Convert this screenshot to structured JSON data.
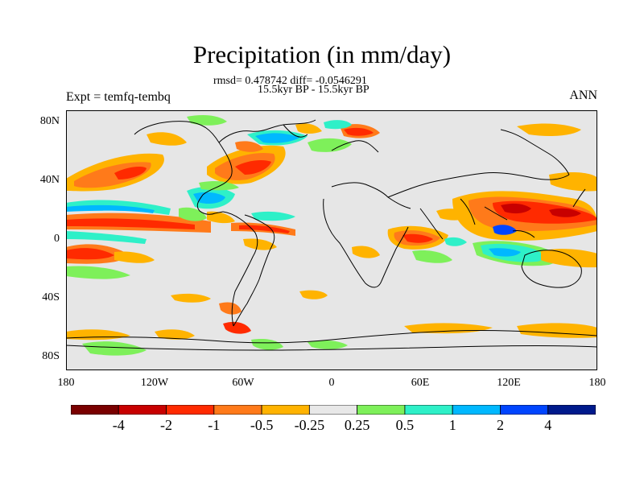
{
  "title": "Precipitation (in mm/day)",
  "stats_line": "rmsd= 0.478742 diff= -0.0546291",
  "experiment_period": "15.5kyr BP - 15.5kyr BP",
  "expt_label": "Expt = temfq-tembq",
  "season_label": "ANN",
  "axes": {
    "y_ticks": [
      "80N",
      "40N",
      "0",
      "40S",
      "80S"
    ],
    "x_ticks": [
      "180",
      "120W",
      "60W",
      "0",
      "60E",
      "120E",
      "180"
    ]
  },
  "colorbar": {
    "colors": [
      "#7a0000",
      "#c80000",
      "#ff2a00",
      "#ff7a1a",
      "#ffb300",
      "#e8e8e8",
      "#7ef05a",
      "#2ef0c8",
      "#00b8ff",
      "#0045ff",
      "#001a8c"
    ],
    "labels": [
      "-4",
      "-2",
      "-1",
      "-0.5",
      "-0.25",
      "0.25",
      "0.5",
      "1",
      "2",
      "4"
    ]
  },
  "map_background": "#e6e6e6"
}
